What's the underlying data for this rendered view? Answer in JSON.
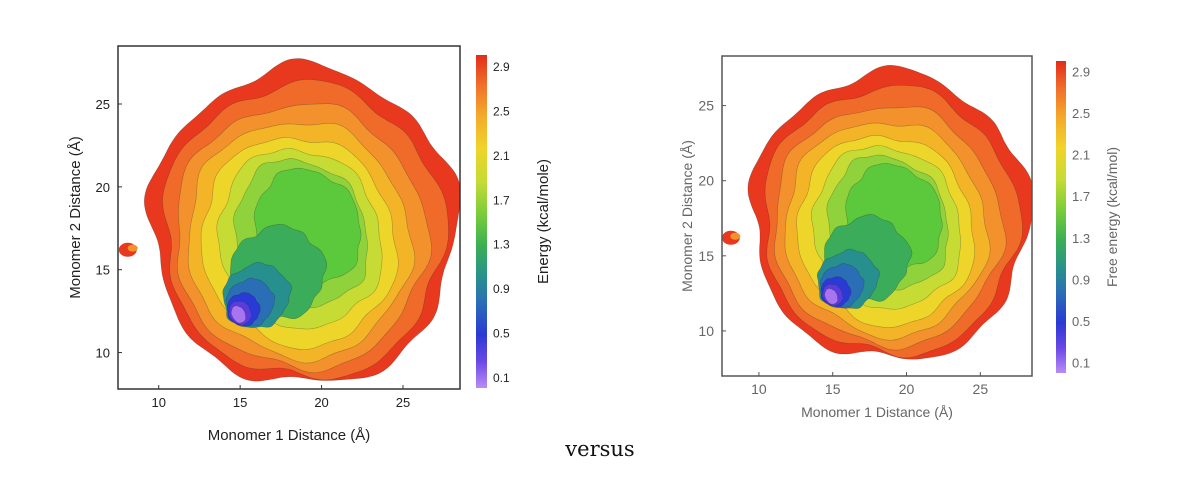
{
  "caption": "versus",
  "chart_data": [
    {
      "type": "heatmap",
      "xlabel": "Monomer 1 Distance (Å)",
      "ylabel": "Monomer 2 Distance (Å)",
      "colorbar_label": "Energy (kcal/mole)",
      "x_ticks": [
        10,
        15,
        20,
        25
      ],
      "y_ticks": [
        10,
        15,
        20,
        25
      ],
      "xlim": [
        7.5,
        28.5
      ],
      "ylim": [
        7.8,
        28.5
      ],
      "colorbar_ticks": [
        "0.1",
        "0.5",
        "0.9",
        "1.3",
        "1.7",
        "2.1",
        "2.5",
        "2.9"
      ],
      "colorbar_range": [
        0,
        3.0
      ],
      "minimum": {
        "x": 15.0,
        "y": 12.5
      },
      "grid": false
    },
    {
      "type": "heatmap",
      "xlabel": "Monomer 1 Distance (Å)",
      "ylabel": "Monomer 2 Distance (Å)",
      "colorbar_label": "Free energy (kcal/mol)",
      "x_ticks": [
        10,
        15,
        20,
        25
      ],
      "y_ticks": [
        10,
        15,
        20,
        25
      ],
      "xlim": [
        7.5,
        28.5
      ],
      "ylim": [
        7.0,
        28.3
      ],
      "colorbar_ticks": [
        "0.1",
        "0.5",
        "0.9",
        "1.3",
        "1.7",
        "2.1",
        "2.5",
        "2.9"
      ],
      "colorbar_range": [
        0,
        3.0
      ],
      "minimum": {
        "x": 15.0,
        "y": 12.5
      },
      "grid": false
    }
  ],
  "colors": {
    "levels": [
      "#a874f0",
      "#5a3cdc",
      "#2a3ad4",
      "#2a6fb5",
      "#27908f",
      "#3aac5a",
      "#5cc83c",
      "#8fd23c",
      "#c6dc34",
      "#eed52a",
      "#f4b428",
      "#f3912c",
      "#f06a2a",
      "#e8391e"
    ]
  }
}
